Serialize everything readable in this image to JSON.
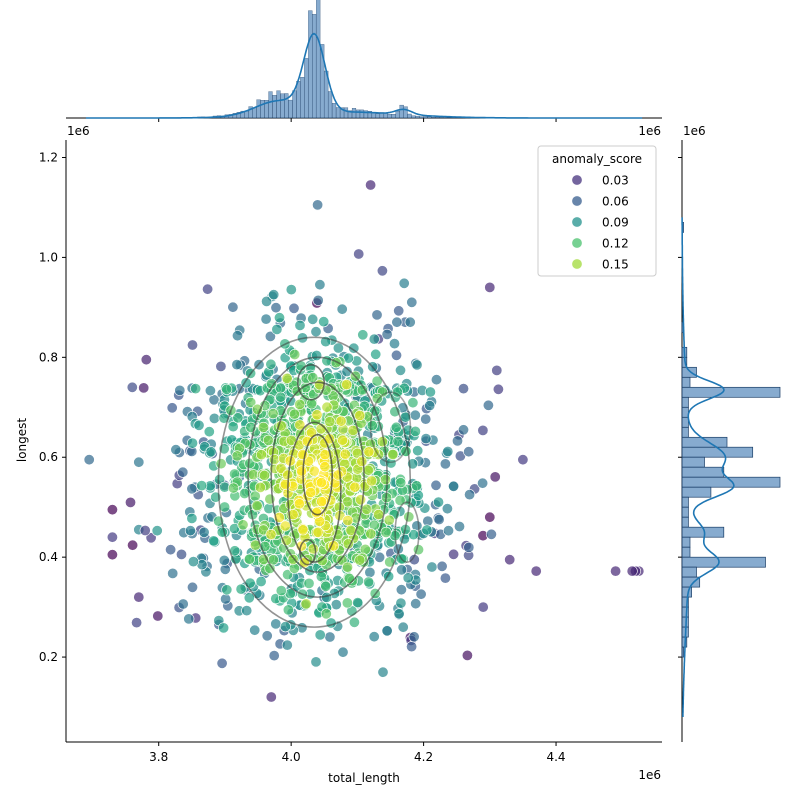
{
  "chart_data": {
    "type": "scatter",
    "title": "",
    "xlabel": "total_length",
    "ylabel": "longest",
    "x_offset_label": "1e6",
    "y_offset_label": "1e6",
    "xlim": [
      3.66,
      4.56
    ],
    "ylim": [
      0.03,
      1.235
    ],
    "x_ticks": [
      {
        "value": 3.8,
        "label": "3.8"
      },
      {
        "value": 4.0,
        "label": "4.0"
      },
      {
        "value": 4.2,
        "label": "4.2"
      },
      {
        "value": 4.4,
        "label": "4.4"
      }
    ],
    "y_ticks": [
      {
        "value": 0.2,
        "label": "0.2"
      },
      {
        "value": 0.4,
        "label": "0.4"
      },
      {
        "value": 0.6,
        "label": "0.6"
      },
      {
        "value": 0.8,
        "label": "0.8"
      },
      {
        "value": 1.0,
        "label": "1.0"
      },
      {
        "value": 1.2,
        "label": "1.2"
      }
    ],
    "marginal_top_offset_labels": [
      "1e6",
      "1e6"
    ],
    "marginal_right_offset_label": "1e6",
    "grid": false,
    "legend": {
      "title": "anomaly_score",
      "placement": "top-right",
      "entries": [
        {
          "label": "0.03",
          "color": "#46327e"
        },
        {
          "label": "0.06",
          "color": "#365c8d"
        },
        {
          "label": "0.09",
          "color": "#21918c"
        },
        {
          "label": "0.12",
          "color": "#4ac16d"
        },
        {
          "label": "0.15",
          "color": "#a0da39"
        }
      ]
    },
    "colormap": [
      "#440154",
      "#46327e",
      "#365c8d",
      "#277f8e",
      "#1fa187",
      "#4ac16d",
      "#a0da39",
      "#fde725"
    ],
    "hist_color": "#1f77b4",
    "kde_contour_color": "#3d3d3d",
    "notable_points": [
      {
        "x": 3.695,
        "y": 0.595,
        "score": 0.06
      },
      {
        "x": 3.73,
        "y": 0.495,
        "score": 0.0
      },
      {
        "x": 3.73,
        "y": 0.44,
        "score": 0.03
      },
      {
        "x": 3.73,
        "y": 0.405,
        "score": 0.0
      },
      {
        "x": 3.77,
        "y": 0.59,
        "score": 0.07
      },
      {
        "x": 3.77,
        "y": 0.455,
        "score": 0.08
      },
      {
        "x": 3.77,
        "y": 0.32,
        "score": 0.02
      },
      {
        "x": 4.04,
        "y": 1.105,
        "score": 0.06
      },
      {
        "x": 4.12,
        "y": 1.145,
        "score": 0.02
      },
      {
        "x": 3.97,
        "y": 0.12,
        "score": 0.02
      },
      {
        "x": 4.3,
        "y": 0.94,
        "score": 0.02
      },
      {
        "x": 4.35,
        "y": 0.595,
        "score": 0.03
      },
      {
        "x": 4.33,
        "y": 0.395,
        "score": 0.02
      },
      {
        "x": 4.37,
        "y": 0.372,
        "score": 0.02
      },
      {
        "x": 4.49,
        "y": 0.372,
        "score": 0.02
      },
      {
        "x": 4.515,
        "y": 0.372,
        "score": 0.02
      },
      {
        "x": 4.52,
        "y": 0.372,
        "score": 0.02
      },
      {
        "x": 4.525,
        "y": 0.372,
        "score": 0.02
      },
      {
        "x": 4.3,
        "y": 0.48,
        "score": 0.0
      },
      {
        "x": 4.29,
        "y": 0.3,
        "score": 0.03
      }
    ],
    "cluster_summary": {
      "center": {
        "x": 4.04,
        "y": 0.56
      },
      "spread": {
        "x": 0.09,
        "y": 0.16
      },
      "count_approx": 1600
    },
    "marginal_x_hist": {
      "range": [
        3.69,
        4.53
      ],
      "peak_x": 4.035,
      "secondary_peak_x": 4.17
    },
    "marginal_y_hist": {
      "bins": [
        {
          "y": 1.06,
          "count": 1
        },
        {
          "y": 0.86,
          "count": 1
        },
        {
          "y": 0.81,
          "count": 3
        },
        {
          "y": 0.79,
          "count": 3
        },
        {
          "y": 0.77,
          "count": 9
        },
        {
          "y": 0.75,
          "count": 5
        },
        {
          "y": 0.73,
          "count": 61
        },
        {
          "y": 0.71,
          "count": 4
        },
        {
          "y": 0.69,
          "count": 4
        },
        {
          "y": 0.67,
          "count": 4
        },
        {
          "y": 0.65,
          "count": 4
        },
        {
          "y": 0.63,
          "count": 28
        },
        {
          "y": 0.61,
          "count": 44
        },
        {
          "y": 0.59,
          "count": 14
        },
        {
          "y": 0.57,
          "count": 26
        },
        {
          "y": 0.55,
          "count": 61
        },
        {
          "y": 0.53,
          "count": 18
        },
        {
          "y": 0.51,
          "count": 4
        },
        {
          "y": 0.49,
          "count": 4
        },
        {
          "y": 0.47,
          "count": 4
        },
        {
          "y": 0.45,
          "count": 26
        },
        {
          "y": 0.43,
          "count": 5
        },
        {
          "y": 0.41,
          "count": 5
        },
        {
          "y": 0.39,
          "count": 52
        },
        {
          "y": 0.37,
          "count": 9
        },
        {
          "y": 0.35,
          "count": 11
        },
        {
          "y": 0.33,
          "count": 6
        },
        {
          "y": 0.31,
          "count": 4
        },
        {
          "y": 0.29,
          "count": 4
        },
        {
          "y": 0.27,
          "count": 4
        },
        {
          "y": 0.25,
          "count": 4
        },
        {
          "y": 0.23,
          "count": 3
        },
        {
          "y": 0.21,
          "count": 1
        }
      ]
    }
  }
}
